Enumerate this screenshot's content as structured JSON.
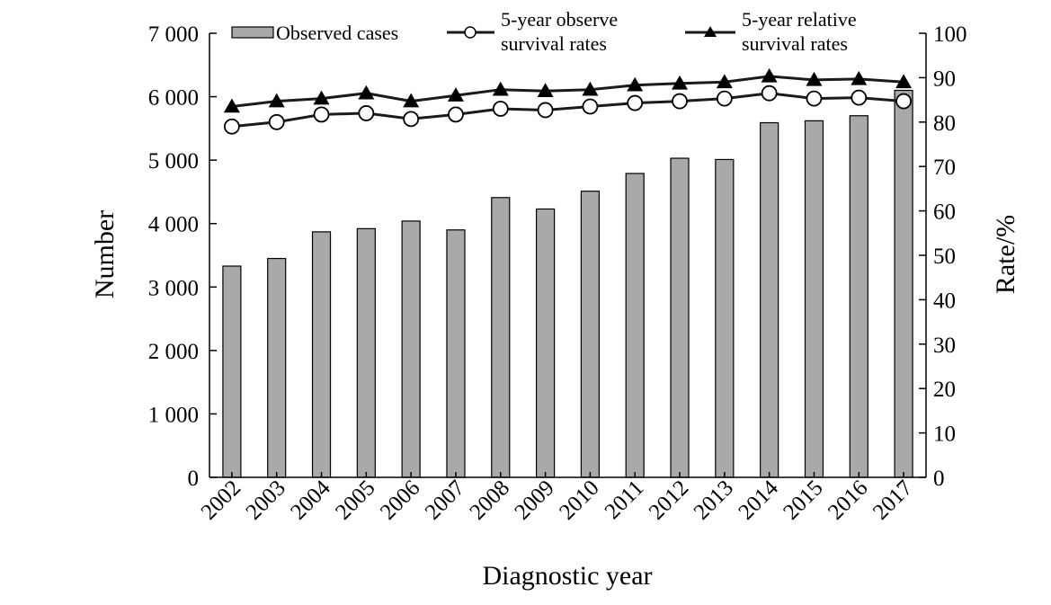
{
  "chart_data": {
    "type": "bar+line",
    "categories": [
      "2002",
      "2003",
      "2004",
      "2005",
      "2006",
      "2007",
      "2008",
      "2009",
      "2010",
      "2011",
      "2012",
      "2013",
      "2014",
      "2015",
      "2016",
      "2017"
    ],
    "bars": {
      "name": "Observed cases",
      "axis": "left",
      "color": "#a9a9a9",
      "values": [
        3330,
        3450,
        3870,
        3920,
        4040,
        3900,
        4410,
        4230,
        4510,
        4790,
        5030,
        5010,
        5590,
        5620,
        5700,
        6100
      ]
    },
    "series": [
      {
        "name": "5-year observe survival rates",
        "axis": "right",
        "marker": "open-circle",
        "values": [
          79.0,
          80.0,
          81.7,
          82.0,
          80.7,
          81.7,
          83.0,
          82.7,
          83.5,
          84.3,
          84.7,
          85.3,
          86.5,
          85.3,
          85.5,
          84.7
        ]
      },
      {
        "name": "5-year relative survival rates",
        "axis": "right",
        "marker": "filled-triangle",
        "values": [
          83.5,
          84.7,
          85.3,
          86.5,
          84.7,
          86.0,
          87.3,
          87.0,
          87.3,
          88.3,
          88.7,
          89.0,
          90.3,
          89.5,
          89.7,
          89.0
        ]
      }
    ],
    "legend_lines": [
      {
        "line1": "Observed cases",
        "line2": ""
      },
      {
        "line1": "5-year observe",
        "line2": "survival rates"
      },
      {
        "line1": "5-year relative",
        "line2": "survival rates"
      }
    ],
    "y_left": {
      "label": "Number",
      "lim": [
        0,
        7000
      ],
      "ticks": [
        0,
        1000,
        2000,
        3000,
        4000,
        5000,
        6000,
        7000
      ],
      "tick_labels": [
        "0",
        "1 000",
        "2 000",
        "3 000",
        "4 000",
        "5 000",
        "6 000",
        "7 000"
      ]
    },
    "y_right": {
      "label": "Rate/%",
      "lim": [
        0,
        100
      ],
      "ticks": [
        0,
        10,
        20,
        30,
        40,
        50,
        60,
        70,
        80,
        90,
        100
      ],
      "tick_labels": [
        "0",
        "10",
        "20",
        "30",
        "40",
        "50",
        "60",
        "70",
        "80",
        "90",
        "100"
      ]
    },
    "xlabel": "Diagnostic year",
    "legend_position": "top",
    "grid": false
  }
}
